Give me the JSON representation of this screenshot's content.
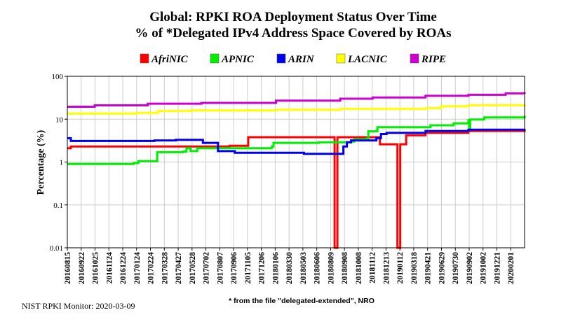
{
  "chart_data": {
    "type": "line",
    "title": "Global: RPKI ROA Deployment Status Over Time",
    "subtitle": "% of *Delegated IPv4 Address Space Covered by ROAs",
    "ylabel": "Percentage (%)",
    "xlabel": "",
    "yscale": "log",
    "ylim": [
      0.01,
      100
    ],
    "yticks": [
      "100",
      "10",
      "1",
      "0.1",
      "0.01"
    ],
    "ytick_values": [
      100,
      10,
      1,
      0.1,
      0.01
    ],
    "grid": true,
    "legend_position": "top",
    "x_range": [
      "2016-08-15",
      "2020-03-09"
    ],
    "xticks": [
      "20160815",
      "20160922",
      "20161025",
      "20161124",
      "20161224",
      "20170124",
      "20170224",
      "20170328",
      "20170427",
      "20170528",
      "20170702",
      "20170807",
      "20170906",
      "20171105",
      "20171206",
      "20180106",
      "20180330",
      "20180503",
      "20180606",
      "20180809",
      "20180908",
      "20181008",
      "20181112",
      "20181213",
      "20190112",
      "20190318",
      "20190421",
      "20190629",
      "20190730",
      "20190902",
      "20191002",
      "20191221",
      "20200201"
    ],
    "series": [
      {
        "name": "AfriNIC",
        "color": "#ff0000",
        "points": [
          [
            "2016-08-15",
            2.1
          ],
          [
            "2016-08-25",
            2.3
          ],
          [
            "2017-08-01",
            2.3
          ],
          [
            "2017-11-20",
            2.4
          ],
          [
            "2018-01-10",
            2.4
          ],
          [
            "2018-01-12",
            3.8
          ],
          [
            "2018-09-14",
            3.8
          ],
          [
            "2018-09-15",
            0.01
          ],
          [
            "2018-09-22",
            0.01
          ],
          [
            "2018-09-23",
            3.8
          ],
          [
            "2019-01-20",
            3.8
          ],
          [
            "2019-01-22",
            2.6
          ],
          [
            "2019-03-12",
            2.6
          ],
          [
            "2019-03-13",
            0.01
          ],
          [
            "2019-03-20",
            0.01
          ],
          [
            "2019-03-21",
            2.6
          ],
          [
            "2019-04-05",
            2.6
          ],
          [
            "2019-04-07",
            4.2
          ],
          [
            "2019-06-01",
            4.8
          ],
          [
            "2019-10-01",
            5.3
          ],
          [
            "2020-03-09",
            5.4
          ]
        ]
      },
      {
        "name": "APNIC",
        "color": "#00ee00",
        "points": [
          [
            "2016-08-15",
            0.9
          ],
          [
            "2017-01-15",
            0.9
          ],
          [
            "2017-02-20",
            0.95
          ],
          [
            "2017-03-05",
            1.05
          ],
          [
            "2017-04-25",
            1.05
          ],
          [
            "2017-04-28",
            1.7
          ],
          [
            "2017-07-10",
            1.75
          ],
          [
            "2017-07-20",
            2.1
          ],
          [
            "2017-08-01",
            1.8
          ],
          [
            "2017-08-20",
            2.1
          ],
          [
            "2018-03-20",
            2.3
          ],
          [
            "2018-03-25",
            2.8
          ],
          [
            "2018-08-01",
            2.9
          ],
          [
            "2018-11-01",
            3.0
          ],
          [
            "2018-11-10",
            3.4
          ],
          [
            "2018-12-15",
            3.5
          ],
          [
            "2018-12-20",
            5.2
          ],
          [
            "2019-01-15",
            6.5
          ],
          [
            "2019-06-15",
            7.2
          ],
          [
            "2019-08-20",
            8.0
          ],
          [
            "2019-10-01",
            9.5
          ],
          [
            "2019-10-03",
            5.8
          ],
          [
            "2019-10-06",
            9.8
          ],
          [
            "2019-11-15",
            11.0
          ],
          [
            "2020-03-09",
            12.0
          ]
        ]
      },
      {
        "name": "ARIN",
        "color": "#0000ee",
        "points": [
          [
            "2016-08-15",
            3.6
          ],
          [
            "2016-08-25",
            3.1
          ],
          [
            "2017-04-20",
            3.2
          ],
          [
            "2017-06-20",
            3.3
          ],
          [
            "2017-09-01",
            3.3
          ],
          [
            "2017-09-05",
            2.8
          ],
          [
            "2017-10-15",
            2.8
          ],
          [
            "2017-10-18",
            1.8
          ],
          [
            "2017-12-01",
            1.8
          ],
          [
            "2017-12-05",
            1.65
          ],
          [
            "2018-06-15",
            1.65
          ],
          [
            "2018-06-20",
            1.55
          ],
          [
            "2018-09-22",
            1.55
          ],
          [
            "2018-10-10",
            2.3
          ],
          [
            "2018-10-20",
            2.9
          ],
          [
            "2018-11-01",
            3.2
          ],
          [
            "2019-01-12",
            3.6
          ],
          [
            "2019-01-25",
            4.5
          ],
          [
            "2019-02-10",
            4.8
          ],
          [
            "2019-06-01",
            5.3
          ],
          [
            "2019-10-01",
            5.7
          ],
          [
            "2020-03-09",
            5.9
          ]
        ]
      },
      {
        "name": "LACNIC",
        "color": "#ffff00",
        "points": [
          [
            "2016-08-15",
            13.5
          ],
          [
            "2017-03-01",
            14.0
          ],
          [
            "2017-05-01",
            15.5
          ],
          [
            "2017-08-01",
            16.0
          ],
          [
            "2018-04-01",
            16.5
          ],
          [
            "2018-10-01",
            17.5
          ],
          [
            "2019-06-01",
            18.0
          ],
          [
            "2019-07-15",
            20.0
          ],
          [
            "2019-10-01",
            21.0
          ],
          [
            "2020-03-09",
            22.0
          ]
        ]
      },
      {
        "name": "RIPE",
        "color": "#cc00cc",
        "points": [
          [
            "2016-08-15",
            19.5
          ],
          [
            "2016-11-01",
            21.0
          ],
          [
            "2017-04-01",
            23.0
          ],
          [
            "2017-09-01",
            24.0
          ],
          [
            "2018-04-01",
            27.0
          ],
          [
            "2018-10-01",
            30.0
          ],
          [
            "2019-01-01",
            32.0
          ],
          [
            "2019-06-01",
            35.0
          ],
          [
            "2019-10-01",
            37.0
          ],
          [
            "2020-01-15",
            40.0
          ],
          [
            "2020-03-09",
            39.0
          ]
        ]
      }
    ]
  },
  "footer": {
    "left": "NIST RPKI Monitor: 2020-03-09",
    "note": "* from the file \"delegated-extended\", NRO"
  }
}
